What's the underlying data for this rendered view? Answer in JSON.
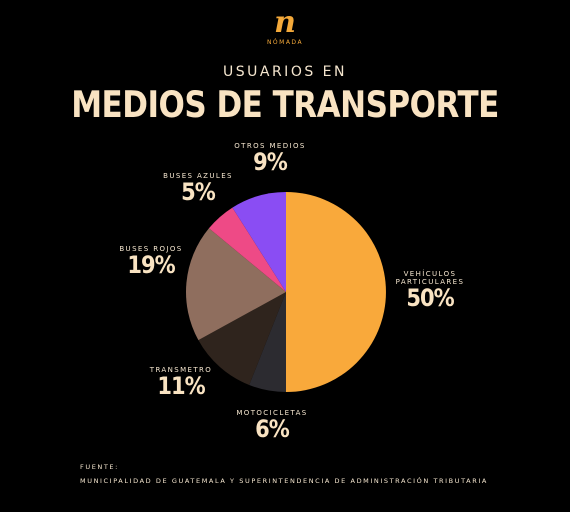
{
  "brand": {
    "mark": "n",
    "name": "NÓMADA"
  },
  "header": {
    "subtitle": "USUARIOS EN",
    "title": "MEDIOS DE TRANSPORTE"
  },
  "chart_data": {
    "type": "pie",
    "title": "USUARIOS EN MEDIOS DE TRANSPORTE",
    "slices": [
      {
        "label": "VEHÍCULOS PARTICULARES",
        "value": 50,
        "display": "50%",
        "color": "#f9a93b"
      },
      {
        "label": "MOTOCICLETAS",
        "value": 6,
        "display": "6%",
        "color": "#2c2b30"
      },
      {
        "label": "TRANSMETRO",
        "value": 11,
        "display": "11%",
        "color": "#2f241d"
      },
      {
        "label": "BUSES ROJOS",
        "value": 19,
        "display": "19%",
        "color": "#8f6e5e"
      },
      {
        "label": "BUSES AZULES",
        "value": 5,
        "display": "5%",
        "color": "#ee4a86"
      },
      {
        "label": "OTROS MEDIOS",
        "value": 9,
        "display": "9%",
        "color": "#8a4df3"
      }
    ]
  },
  "source": {
    "label": "FUENTE:",
    "text": "MUNICIPALIDAD DE GUATEMALA Y SUPERINTENDENCIA DE ADMINISTRACIÓN TRIBUTARIA"
  }
}
